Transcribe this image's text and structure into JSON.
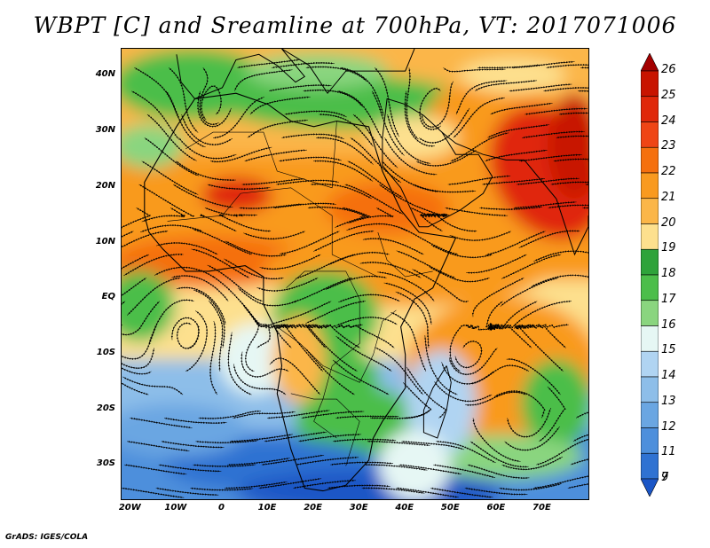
{
  "title": "WBPT [C] and Sreamline at 700hPa, VT: 2017071006",
  "footer": "GrADS: IGES/COLA",
  "lat_labels": [
    "40N",
    "30N",
    "20N",
    "10N",
    "EQ",
    "10S",
    "20S",
    "30S"
  ],
  "lon_labels": [
    "20W",
    "10W",
    "0",
    "10E",
    "20E",
    "30E",
    "40E",
    "50E",
    "60E",
    "70E"
  ],
  "lat_values": [
    40,
    30,
    20,
    10,
    0,
    -10,
    -20,
    -30
  ],
  "lon_values": [
    -20,
    -10,
    0,
    10,
    20,
    30,
    40,
    50,
    60,
    70
  ],
  "extent": {
    "lon_min": -22,
    "lon_max": 80,
    "lat_min": -36,
    "lat_max": 45
  },
  "legend": {
    "labels": [
      "26",
      "25",
      "24",
      "23",
      "22",
      "21",
      "20",
      "19",
      "18",
      "17",
      "16",
      "15",
      "14",
      "13",
      "12",
      "11",
      "9",
      "7"
    ],
    "colors": [
      "#a30000",
      "#c81400",
      "#e0280a",
      "#ef4515",
      "#f5700e",
      "#f99a1f",
      "#fbb648",
      "#fde08e",
      "#2ea33a",
      "#4cbe4a",
      "#8ad57f",
      "#e6f7f4",
      "#b0d4f2",
      "#8dbee9",
      "#6aa6e2",
      "#4d8fdc",
      "#2f72d2",
      "#1b56c6"
    ]
  }
}
